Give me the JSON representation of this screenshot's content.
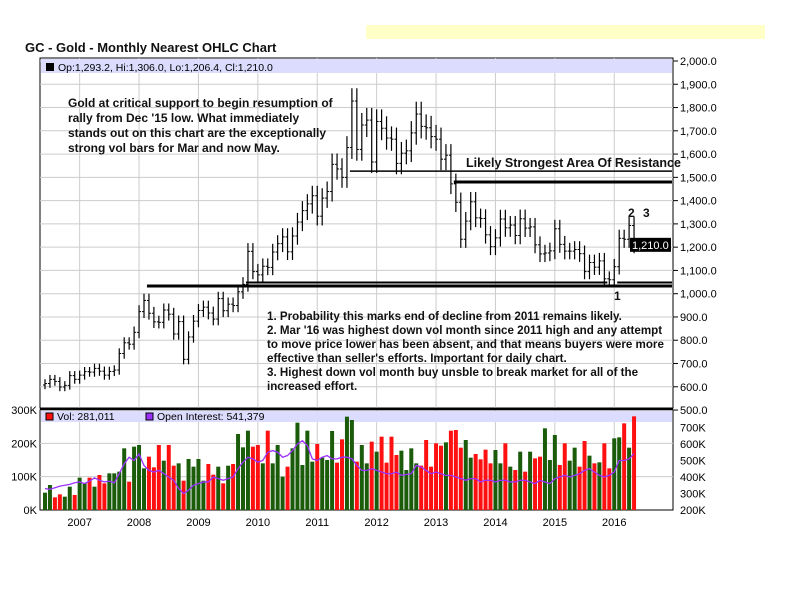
{
  "title": "GC - Gold - Monthly Nearest OHLC Chart",
  "legend": {
    "ohlc": "Op:1,293.2, Hi:1,306.0, Lo:1,206.4, Cl:1,210.0",
    "vol": "Vol: 281,011",
    "oi": "Open Interest: 541,379",
    "last_price": "1,210.0"
  },
  "notes": {
    "top": "Gold at critical support to begin resumption of rally from Dec '15 low.  What immediately stands out on this chart are the exceptionally strong vol bars for Mar and now May.",
    "resistance": "Likely Strongest Area Of Resistance",
    "label_1": "1",
    "label_2": "2",
    "label_3": "3",
    "bottom": [
      "1. Probability this marks end of decline from 2011 remains likely.",
      "2. Mar '16 was highest down vol month since 2011 high and any attempt to move price lower has been absent, and that means buyers were more effective than seller's efforts.  Important for daily chart.",
      "3. Highest down vol month buy unsble to break market for all of the increased effort."
    ]
  },
  "colors": {
    "up": "#1a5c0a",
    "down": "#ff1010",
    "oi": "#9b30ff",
    "band": "#dcdcff"
  },
  "chart_data": {
    "type": "ohlc",
    "start": "2006-06",
    "interval": "month",
    "price_axis": {
      "min": 500,
      "max": 2000,
      "step": 100,
      "ticks": [
        "2,000.0",
        "1,900.0",
        "1,800.0",
        "1,700.0",
        "1,600.0",
        "1,500.0",
        "1,400.0",
        "1,300.0",
        "1,200.0",
        "1,100.0",
        "1,000.0",
        "900.0",
        "800.0",
        "700.0",
        "600.0",
        "500.0"
      ]
    },
    "vol_axis": {
      "min": 0,
      "max": 300,
      "ticks": [
        "300K",
        "200K",
        "100K",
        "0K"
      ]
    },
    "oi_axis": {
      "min": 200,
      "max": 800,
      "ticks": [
        "700K",
        "600K",
        "500K",
        "400K",
        "300K",
        "200K"
      ]
    },
    "x_ticks": [
      "2007",
      "2008",
      "2009",
      "2010",
      "2011",
      "2012",
      "2013",
      "2014",
      "2015",
      "2016"
    ],
    "close": [
      614,
      632,
      623,
      599,
      606,
      648,
      632,
      650,
      665,
      663,
      679,
      667,
      650,
      666,
      672,
      743,
      789,
      783,
      834,
      923,
      971,
      916,
      879,
      877,
      930,
      912,
      827,
      880,
      718,
      814,
      882,
      928,
      942,
      917,
      891,
      979,
      927,
      955,
      949,
      1008,
      1040,
      1182,
      1095,
      1081,
      1118,
      1113,
      1179,
      1215,
      1244,
      1180,
      1248,
      1308,
      1357,
      1386,
      1421,
      1333,
      1411,
      1439,
      1556,
      1536,
      1500,
      1628,
      1828,
      1620,
      1725,
      1746,
      1566,
      1740,
      1711,
      1669,
      1664,
      1560,
      1604,
      1614,
      1691,
      1772,
      1719,
      1713,
      1675,
      1664,
      1578,
      1595,
      1472,
      1393,
      1234,
      1312,
      1395,
      1326,
      1323,
      1253,
      1202,
      1240,
      1321,
      1283,
      1295,
      1250,
      1322,
      1282,
      1287,
      1210,
      1171,
      1175,
      1184,
      1279,
      1212,
      1183,
      1183,
      1190,
      1172,
      1095,
      1134,
      1114,
      1141,
      1064,
      1060,
      1116,
      1238,
      1234,
      1293,
      1210
    ],
    "volume_k": [
      52,
      75,
      38,
      47,
      40,
      70,
      45,
      97,
      80,
      97,
      70,
      105,
      80,
      110,
      110,
      115,
      185,
      85,
      190,
      195,
      125,
      160,
      128,
      195,
      148,
      195,
      133,
      140,
      88,
      153,
      130,
      153,
      88,
      138,
      106,
      130,
      80,
      133,
      138,
      228,
      188,
      238,
      190,
      195,
      140,
      238,
      140,
      195,
      100,
      130,
      185,
      262,
      135,
      238,
      145,
      198,
      157,
      150,
      237,
      142,
      212,
      280,
      270,
      145,
      195,
      140,
      205,
      175,
      220,
      142,
      220,
      165,
      178,
      120,
      185,
      140,
      133,
      210,
      130,
      200,
      193,
      203,
      238,
      240,
      187,
      210,
      157,
      168,
      152,
      181,
      140,
      180,
      140,
      200,
      130,
      120,
      175,
      115,
      175,
      155,
      160,
      245,
      150,
      225,
      135,
      200,
      148,
      187,
      130,
      207,
      163,
      140,
      143,
      200,
      125,
      215,
      218,
      260,
      187,
      281
    ],
    "open_interest_k": [
      330,
      325,
      335,
      345,
      350,
      355,
      365,
      370,
      360,
      375,
      395,
      380,
      370,
      375,
      365,
      420,
      480,
      520,
      500,
      540,
      470,
      440,
      430,
      440,
      420,
      400,
      380,
      330,
      300,
      320,
      350,
      360,
      370,
      370,
      400,
      390,
      380,
      390,
      400,
      450,
      490,
      520,
      510,
      490,
      500,
      550,
      560,
      550,
      520,
      530,
      560,
      600,
      620,
      590,
      510,
      500,
      520,
      530,
      510,
      510,
      520,
      520,
      510,
      470,
      440,
      440,
      450,
      440,
      430,
      420,
      420,
      430,
      410,
      415,
      420,
      470,
      460,
      440,
      420,
      430,
      420,
      410,
      410,
      400,
      390,
      380,
      390,
      390,
      370,
      380,
      380,
      370,
      380,
      380,
      370,
      370,
      380,
      380,
      370,
      360,
      380,
      370,
      360,
      390,
      400,
      410,
      400,
      410,
      420,
      440,
      450,
      430,
      410,
      400,
      410,
      430,
      500,
      500,
      510,
      541
    ],
    "levels": [
      {
        "price": 1527,
        "from": "2011-08"
      },
      {
        "price": 1480,
        "from": "2013-05"
      },
      {
        "price": 1048,
        "from": "2009-11",
        "to": "2015-11"
      },
      {
        "price": 1048,
        "from": "2016-02"
      },
      {
        "price": 1033,
        "from": "2008-03"
      }
    ]
  }
}
